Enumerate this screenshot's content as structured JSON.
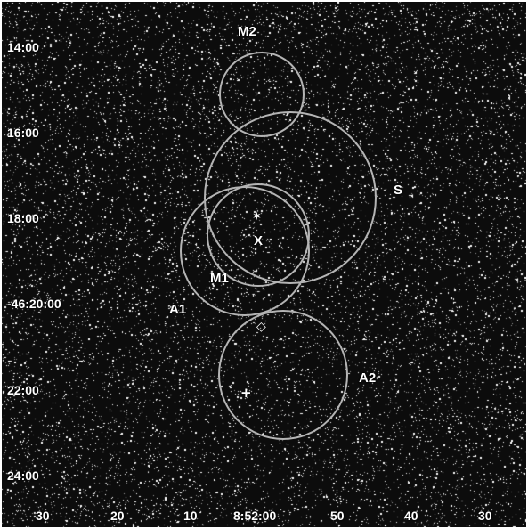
{
  "dec_ticks": [
    "14:00",
    "16:00",
    "18:00",
    "-46:20:00",
    "22:00",
    "24:00"
  ],
  "ra_ticks": [
    "30",
    "20",
    "10",
    "8:52:00",
    "50",
    "40",
    "30"
  ],
  "region_labels": {
    "m2": "M2",
    "s": "S",
    "x": "X",
    "m1": "M1",
    "a1": "A1",
    "a2": "A2"
  },
  "markers": {
    "plus": "+",
    "diamond": "◇",
    "star": "✶"
  },
  "colors": {
    "background": "#0c0c0c",
    "photons": "#ffffff",
    "regions": "#b4b4b4"
  }
}
